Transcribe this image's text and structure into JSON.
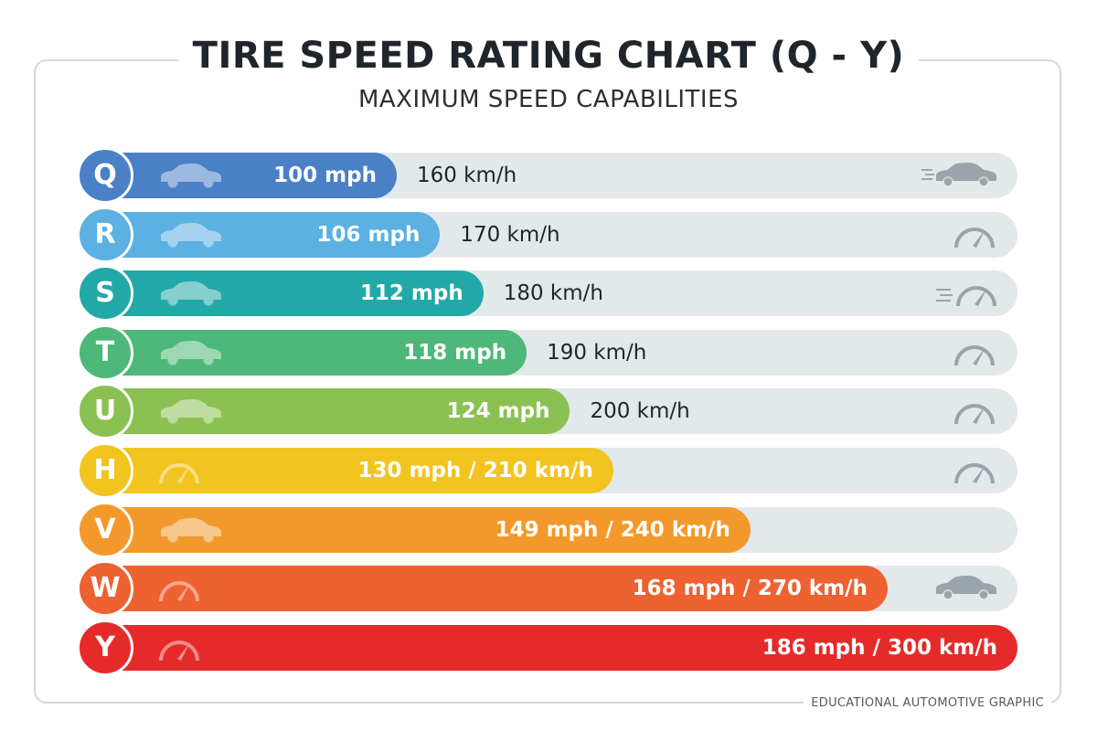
{
  "title": "TIRE SPEED RATING CHART (Q - Y)",
  "subtitle": "MAXIMUM SPEED CAPABILITIES",
  "footer": "EDUCATIONAL AUTOMOTIVE GRAPHIC",
  "chart_data": {
    "type": "bar",
    "orientation": "horizontal",
    "title": "TIRE SPEED RATING CHART (Q - Y)",
    "subtitle": "MAXIMUM SPEED CAPABILITIES",
    "categories": [
      "Q",
      "R",
      "S",
      "T",
      "U",
      "H",
      "V",
      "W",
      "Y"
    ],
    "values_mph": [
      100,
      106,
      112,
      118,
      124,
      130,
      149,
      168,
      186
    ],
    "values_kmh": [
      160,
      170,
      180,
      190,
      200,
      210,
      240,
      270,
      300
    ],
    "colors": [
      "#4a80c6",
      "#5cb0e2",
      "#22a9a7",
      "#4db879",
      "#8bc153",
      "#f2c41f",
      "#f3992b",
      "#ee6130",
      "#e52b2a"
    ],
    "rows": [
      {
        "rating": "Q",
        "mph_label": "100 mph",
        "kmh_label": "160 km/h",
        "combined": false,
        "left_icon": "car-icon",
        "right_icon": "fast-car-icon"
      },
      {
        "rating": "R",
        "mph_label": "106 mph",
        "kmh_label": "170 km/h",
        "combined": false,
        "left_icon": "car-icon",
        "right_icon": "speedometer-icon"
      },
      {
        "rating": "S",
        "mph_label": "112 mph",
        "kmh_label": "180 km/h",
        "combined": false,
        "left_icon": "car-icon",
        "right_icon": "fast-speedometer-icon"
      },
      {
        "rating": "T",
        "mph_label": "118 mph",
        "kmh_label": "190 km/h",
        "combined": false,
        "left_icon": "car-icon",
        "right_icon": "speedometer-icon"
      },
      {
        "rating": "U",
        "mph_label": "124 mph",
        "kmh_label": "200 km/h",
        "combined": false,
        "left_icon": "car-icon",
        "right_icon": "speedometer-icon"
      },
      {
        "rating": "H",
        "mph_label": "130 mph / 210 km/h",
        "combined": true,
        "left_icon": "speedometer-icon",
        "right_icon": "speedometer-icon"
      },
      {
        "rating": "V",
        "mph_label": "149 mph / 240 km/h",
        "combined": true,
        "left_icon": "car-icon",
        "right_icon": ""
      },
      {
        "rating": "W",
        "mph_label": "168 mph / 270 km/h",
        "combined": true,
        "left_icon": "speedometer-icon",
        "right_icon": "car-icon"
      },
      {
        "rating": "Y",
        "mph_label": "186 mph / 300 km/h",
        "combined": true,
        "left_icon": "speedometer-icon",
        "right_icon": ""
      }
    ],
    "xlim_mph": [
      0,
      186
    ],
    "grid": false,
    "legend": "none"
  }
}
